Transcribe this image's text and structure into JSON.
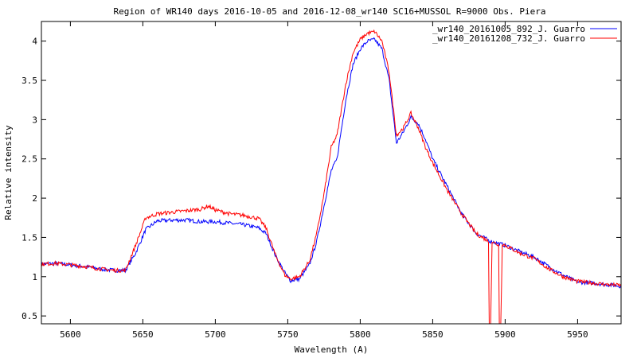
{
  "chart_data": {
    "type": "line",
    "title": "Region of WR140  days  2016-10-05 and 2016-12-08_wr140  SC16+MUSSOL    R=9000  Obs. Piera",
    "xlabel": "Wavelength (A)",
    "ylabel": "Relative intensity",
    "xlim": [
      5580,
      5980
    ],
    "ylim": [
      0.4,
      4.25
    ],
    "xticks": [
      5600,
      5650,
      5700,
      5750,
      5800,
      5850,
      5900,
      5950
    ],
    "yticks": [
      0.5,
      1,
      1.5,
      2,
      2.5,
      3,
      3.5,
      4
    ],
    "grid": false,
    "legend_position": "top-right",
    "series": [
      {
        "name": "_wr140_20161005_892_J. Guarro",
        "color": "#0000ff",
        "x": [
          5580,
          5590,
          5600,
          5610,
          5620,
          5630,
          5638,
          5645,
          5652,
          5660,
          5670,
          5680,
          5690,
          5700,
          5710,
          5720,
          5730,
          5735,
          5742,
          5748,
          5752,
          5758,
          5765,
          5770,
          5775,
          5780,
          5784,
          5790,
          5795,
          5800,
          5805,
          5810,
          5815,
          5820,
          5825,
          5830,
          5835,
          5840,
          5845,
          5850,
          5860,
          5870,
          5880,
          5890,
          5900,
          5910,
          5920,
          5930,
          5940,
          5950,
          5960,
          5970,
          5980
        ],
        "y": [
          1.16,
          1.17,
          1.15,
          1.13,
          1.1,
          1.08,
          1.08,
          1.3,
          1.6,
          1.71,
          1.72,
          1.72,
          1.7,
          1.7,
          1.68,
          1.66,
          1.62,
          1.55,
          1.25,
          1.05,
          0.95,
          0.97,
          1.15,
          1.45,
          1.9,
          2.35,
          2.5,
          3.25,
          3.7,
          3.9,
          4.0,
          4.02,
          3.9,
          3.5,
          2.7,
          2.85,
          3.03,
          2.95,
          2.75,
          2.5,
          2.15,
          1.8,
          1.55,
          1.45,
          1.4,
          1.32,
          1.25,
          1.13,
          1.02,
          0.93,
          0.92,
          0.9,
          0.88
        ]
      },
      {
        "name": "_wr140_20161208_732_J. Guarro",
        "color": "#ff0000",
        "x": [
          5580,
          5590,
          5600,
          5610,
          5620,
          5630,
          5638,
          5645,
          5652,
          5660,
          5670,
          5680,
          5690,
          5695,
          5700,
          5710,
          5720,
          5730,
          5735,
          5742,
          5748,
          5752,
          5758,
          5765,
          5770,
          5775,
          5780,
          5784,
          5790,
          5795,
          5800,
          5805,
          5810,
          5815,
          5820,
          5825,
          5830,
          5835,
          5840,
          5845,
          5850,
          5860,
          5870,
          5880,
          5888.5,
          5889,
          5890,
          5891,
          5895.5,
          5896,
          5897,
          5898,
          5900,
          5910,
          5920,
          5930,
          5940,
          5950,
          5960,
          5970,
          5980
        ],
        "y": [
          1.16,
          1.17,
          1.15,
          1.13,
          1.1,
          1.08,
          1.08,
          1.4,
          1.75,
          1.8,
          1.82,
          1.84,
          1.86,
          1.9,
          1.85,
          1.8,
          1.78,
          1.74,
          1.62,
          1.25,
          1.02,
          0.97,
          1.0,
          1.2,
          1.55,
          2.05,
          2.65,
          2.8,
          3.45,
          3.85,
          4.02,
          4.1,
          4.12,
          4.0,
          3.6,
          2.8,
          2.9,
          3.08,
          2.9,
          2.65,
          2.45,
          2.1,
          1.8,
          1.55,
          1.45,
          0.4,
          0.4,
          1.45,
          1.4,
          0.4,
          0.4,
          1.42,
          1.4,
          1.3,
          1.23,
          1.1,
          1.0,
          0.94,
          0.92,
          0.9,
          0.89
        ]
      }
    ]
  }
}
